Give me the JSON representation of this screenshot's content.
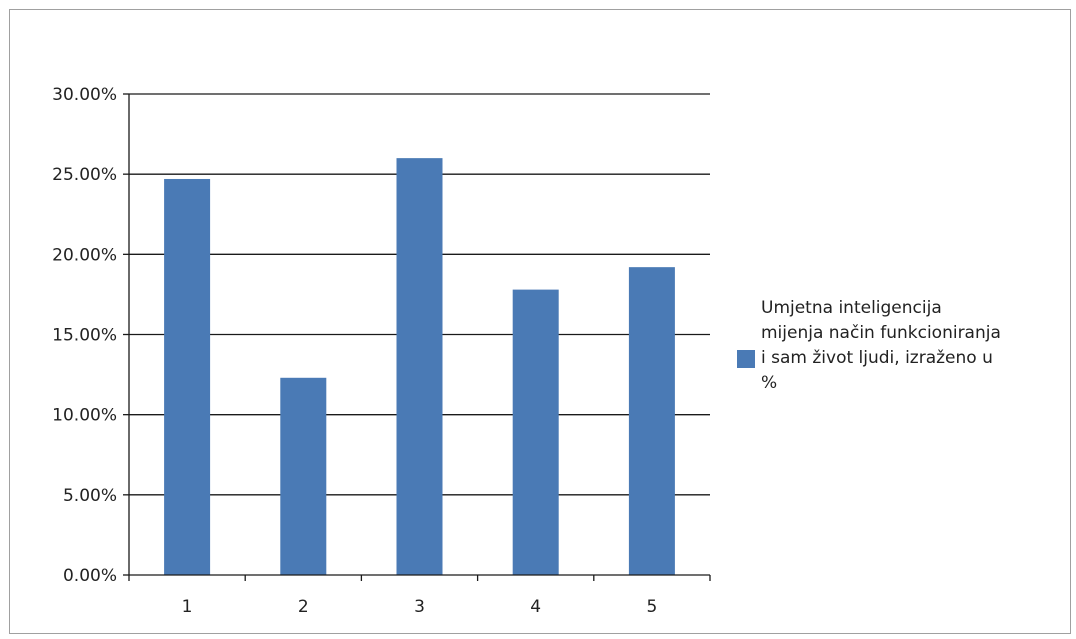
{
  "chart_data": {
    "type": "bar",
    "categories": [
      "1",
      "2",
      "3",
      "4",
      "5"
    ],
    "series": [
      {
        "name": "Umjetna inteligencija mijenja način funkcioniranja i sam život ljudi, izraženo u %",
        "values": [
          24.7,
          12.3,
          26.0,
          17.8,
          19.2
        ]
      }
    ],
    "y_ticks": [
      "0.00%",
      "5.00%",
      "10.00%",
      "15.00%",
      "20.00%",
      "25.00%",
      "30.00%"
    ],
    "ylim": [
      0,
      30
    ],
    "grid": true,
    "legend_position": "right",
    "bar_color": "#4a7ab5",
    "title": "",
    "xlabel": "",
    "ylabel": ""
  },
  "legend_lines": [
    "Umjetna inteligencija",
    "mijenja način funkcioniranja",
    "i sam život ljudi, izraženo u",
    "%"
  ]
}
